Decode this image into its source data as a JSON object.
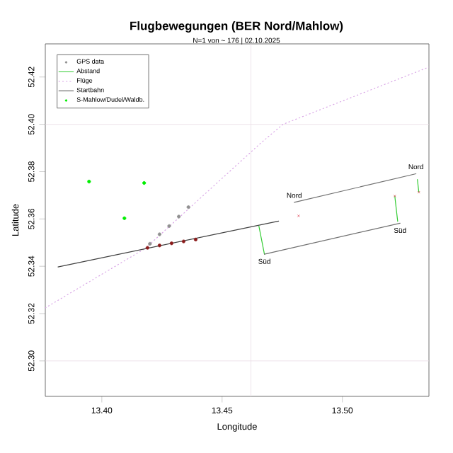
{
  "chart_data": {
    "type": "line",
    "title": "Flugbewegungen (BER Nord/Mahlow)",
    "subtitle": "N=1 von ~ 176 | 02.10.2025",
    "xlabel": "Longitude",
    "ylabel": "Latitude",
    "xlim": [
      13.3765,
      13.536
    ],
    "ylim": [
      52.285,
      52.434
    ],
    "xticks": [
      {
        "value": 13.4,
        "label": "13.40"
      },
      {
        "value": 13.45,
        "label": "13.45"
      },
      {
        "value": 13.5,
        "label": "13.50"
      }
    ],
    "yticks": [
      {
        "value": 52.3,
        "label": "52.30"
      },
      {
        "value": 52.32,
        "label": "52.32"
      },
      {
        "value": 52.34,
        "label": "52.34"
      },
      {
        "value": 52.36,
        "label": "52.36"
      },
      {
        "value": 52.38,
        "label": "52.38"
      },
      {
        "value": 52.4,
        "label": "52.40"
      },
      {
        "value": 52.42,
        "label": "52.42"
      }
    ],
    "legend": "top left",
    "ref_lines": [
      {
        "axis": "y",
        "value": 52.4,
        "color": "#eadde4"
      },
      {
        "axis": "y",
        "value": 52.3,
        "color": "#eadde4"
      },
      {
        "axis": "x",
        "value": 13.462,
        "color": "#eadde4"
      }
    ],
    "series": [
      {
        "name": "GPS data",
        "type": "scatter",
        "marker": "circle",
        "color": "#909090",
        "x": [
          13.42,
          13.424,
          13.428,
          13.432,
          13.436
        ],
        "values": [
          52.3495,
          52.3535,
          52.357,
          52.361,
          52.365
        ]
      },
      {
        "name": "Abstand",
        "color": "#33cc33",
        "x": [
          13.4653,
          13.4676,
          null,
          13.5218,
          13.523,
          null,
          13.5312,
          13.5318
        ],
        "values": [
          52.357,
          52.3451,
          null,
          52.3697,
          52.359,
          null,
          52.3767,
          52.3713
        ]
      },
      {
        "name": "Flüge",
        "line_style": "dotted",
        "color": "#d9a6e6",
        "x": [
          13.3765,
          13.418,
          13.466,
          13.4753,
          13.536
        ],
        "values": [
          52.3224,
          52.3475,
          52.392,
          52.4,
          52.4242
        ]
      },
      {
        "name": "Startbahn",
        "color": "#707070",
        "x": [
          13.48,
          13.5306,
          null,
          13.4676,
          13.524
        ],
        "values": [
          52.367,
          52.3791,
          null,
          52.3451,
          52.3582
        ]
      },
      {
        "name": "S-Mahlow/Dudel/Waldb.",
        "type": "scatter",
        "marker": "circle",
        "color": "#00ee00",
        "x": [
          13.3947,
          13.4176,
          13.4094
        ],
        "values": [
          52.3758,
          52.3752,
          52.3603
        ]
      },
      {
        "color": "#404040",
        "x": [
          13.3818,
          13.4735
        ],
        "values": [
          52.3397,
          52.3591
        ]
      },
      {
        "type": "scatter",
        "marker": "circle",
        "color": "#8b1a1a",
        "x": [
          13.419,
          13.424,
          13.429,
          13.434,
          13.439
        ],
        "values": [
          52.3478,
          52.3488,
          52.3497,
          52.3505,
          52.3513
        ]
      },
      {
        "type": "scatter",
        "marker": "cross",
        "color": "#e05060",
        "x": [
          13.4818,
          13.5218,
          13.5318
        ],
        "values": [
          52.3613,
          52.3697,
          52.3713
        ]
      }
    ],
    "annotations": [
      {
        "text": "Nord",
        "x": 13.48,
        "y": 52.367
      },
      {
        "text": "Nord",
        "x": 13.5306,
        "y": 52.3791
      },
      {
        "text": "Süd",
        "x": 13.4676,
        "y": 52.3451
      },
      {
        "text": "Süd",
        "x": 13.524,
        "y": 52.3582
      }
    ]
  }
}
